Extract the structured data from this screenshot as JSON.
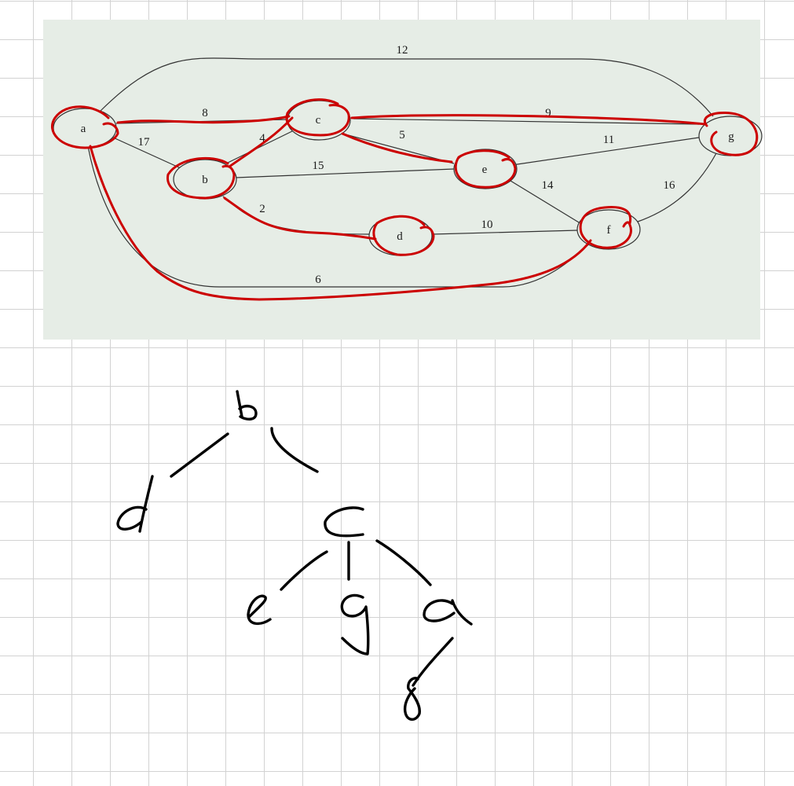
{
  "graph": {
    "background_color": "#e6ede6",
    "annotation_color": "#cc0000",
    "nodes": [
      "a",
      "b",
      "c",
      "d",
      "e",
      "f",
      "g"
    ],
    "edges": [
      {
        "from": "a",
        "to": "g",
        "weight": "12"
      },
      {
        "from": "a",
        "to": "c",
        "weight": "8"
      },
      {
        "from": "a",
        "to": "b",
        "weight": "17"
      },
      {
        "from": "a",
        "to": "f",
        "weight": "6"
      },
      {
        "from": "b",
        "to": "c",
        "weight": "4"
      },
      {
        "from": "b",
        "to": "e",
        "weight": "15"
      },
      {
        "from": "b",
        "to": "d",
        "weight": "2"
      },
      {
        "from": "c",
        "to": "g",
        "weight": "9"
      },
      {
        "from": "c",
        "to": "e",
        "weight": "5"
      },
      {
        "from": "e",
        "to": "g",
        "weight": "11"
      },
      {
        "from": "e",
        "to": "f",
        "weight": "14"
      },
      {
        "from": "d",
        "to": "f",
        "weight": "10"
      },
      {
        "from": "f",
        "to": "g",
        "weight": "16"
      }
    ],
    "highlighted_edges": [
      "a-c",
      "b-c",
      "b-d",
      "c-g",
      "c-e",
      "a-f"
    ]
  },
  "tree_sketch": {
    "root": "b",
    "children": {
      "b": [
        "d",
        "c"
      ],
      "c": [
        "e",
        "g",
        "a"
      ],
      "a": [
        "f"
      ]
    }
  }
}
